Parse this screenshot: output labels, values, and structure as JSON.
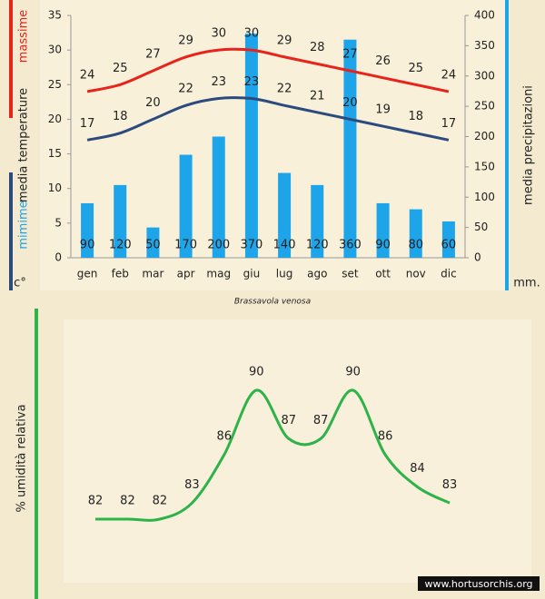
{
  "chart_data": [
    {
      "type": "combo",
      "categories": [
        "gen",
        "feb",
        "mar",
        "apr",
        "mag",
        "giu",
        "lug",
        "ago",
        "set",
        "ott",
        "nov",
        "dic"
      ],
      "series": [
        {
          "type": "bar",
          "axis": "y2",
          "color": "#1ea5e9",
          "values": [
            90,
            120,
            50,
            170,
            200,
            370,
            140,
            120,
            360,
            90,
            80,
            60
          ]
        },
        {
          "type": "line",
          "name": "massime",
          "color": "#e8231c",
          "values": [
            24,
            25,
            27,
            29,
            30,
            30,
            29,
            28,
            27,
            26,
            25,
            24
          ]
        },
        {
          "type": "line",
          "name": "mimime",
          "color": "#2b4a7e",
          "label_color": "#1ea5e9",
          "values": [
            17,
            18,
            20,
            22,
            23,
            23,
            22,
            21,
            20,
            19,
            18,
            17
          ]
        }
      ],
      "ylabel": "media  temperature",
      "yunit": "c°",
      "y2label": "media  precipitazioni",
      "y2unit": "mm.",
      "ylim": [
        0,
        35
      ],
      "yticks": [
        0,
        5,
        10,
        15,
        20,
        25,
        30,
        35
      ],
      "y2lim": [
        0,
        400
      ],
      "y2ticks": [
        0,
        50,
        100,
        150,
        200,
        250,
        300,
        350,
        400
      ],
      "caption": "Brassavola venosa"
    },
    {
      "type": "line",
      "ylabel": "% umidità relativa",
      "series": [
        {
          "color": "#2db34a",
          "values": [
            82,
            82,
            82,
            83,
            86,
            90,
            87,
            87,
            90,
            86,
            84,
            83
          ]
        }
      ]
    }
  ],
  "watermark": "www.hortusorchis.org"
}
